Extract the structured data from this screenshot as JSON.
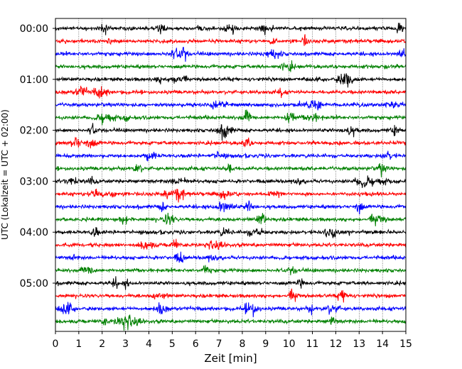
{
  "chart_data": {
    "type": "line",
    "title": "",
    "xlabel": "Zeit  [min]",
    "ylabel": "UTC (Lokalzeit = UTC + 02:00)",
    "xlim": [
      0,
      15
    ],
    "x_ticks": [
      0,
      1,
      2,
      3,
      4,
      5,
      6,
      7,
      8,
      9,
      10,
      11,
      12,
      13,
      14,
      15
    ],
    "y_tick_labels": [
      "00:00",
      "01:00",
      "02:00",
      "03:00",
      "04:00",
      "05:00"
    ],
    "y_tick_rows": [
      0,
      4,
      8,
      12,
      16,
      20
    ],
    "grid": "vertical dotted lines at each minute",
    "row_interval_min": 15,
    "colors": [
      "#000000",
      "#ff0000",
      "#0000ff",
      "#008000"
    ],
    "rows": [
      {
        "start": "00:00",
        "color": "#000000"
      },
      {
        "start": "00:15",
        "color": "#ff0000"
      },
      {
        "start": "00:30",
        "color": "#0000ff"
      },
      {
        "start": "00:45",
        "color": "#008000"
      },
      {
        "start": "01:00",
        "color": "#000000"
      },
      {
        "start": "01:15",
        "color": "#ff0000"
      },
      {
        "start": "01:30",
        "color": "#0000ff"
      },
      {
        "start": "01:45",
        "color": "#008000"
      },
      {
        "start": "02:00",
        "color": "#000000"
      },
      {
        "start": "02:15",
        "color": "#ff0000"
      },
      {
        "start": "02:30",
        "color": "#0000ff"
      },
      {
        "start": "02:45",
        "color": "#008000"
      },
      {
        "start": "03:00",
        "color": "#000000"
      },
      {
        "start": "03:15",
        "color": "#ff0000"
      },
      {
        "start": "03:30",
        "color": "#0000ff"
      },
      {
        "start": "03:45",
        "color": "#008000"
      },
      {
        "start": "04:00",
        "color": "#000000"
      },
      {
        "start": "04:15",
        "color": "#ff0000"
      },
      {
        "start": "04:30",
        "color": "#0000ff"
      },
      {
        "start": "04:45",
        "color": "#008000"
      },
      {
        "start": "05:00",
        "color": "#000000"
      },
      {
        "start": "05:15",
        "color": "#ff0000"
      },
      {
        "start": "05:30",
        "color": "#0000ff"
      },
      {
        "start": "05:45",
        "color": "#008000"
      }
    ]
  }
}
